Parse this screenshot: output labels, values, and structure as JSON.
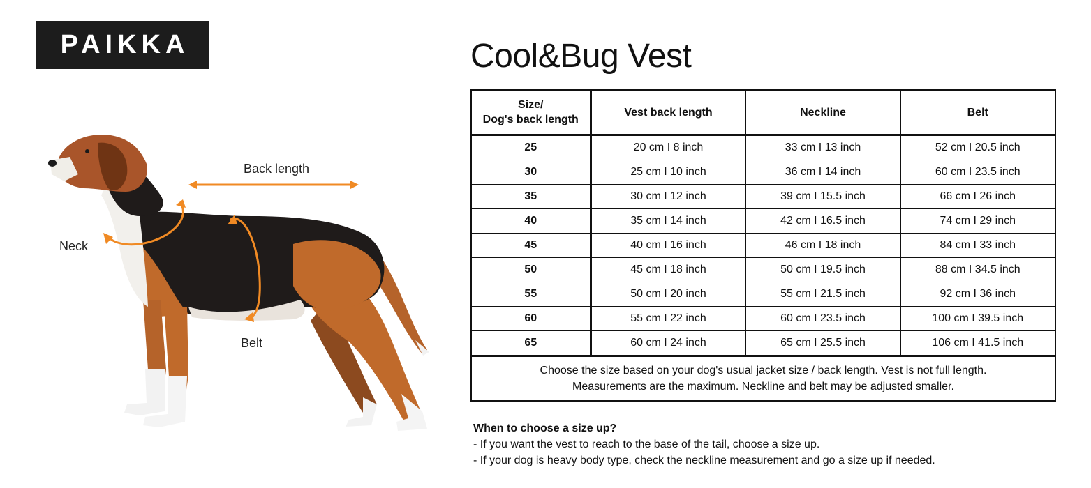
{
  "brand": {
    "logo_text": "PAIKKA"
  },
  "product": {
    "title": "Cool&Bug Vest"
  },
  "illustration": {
    "labels": {
      "back_length": "Back length",
      "neck": "Neck",
      "belt": "Belt"
    },
    "accent_color": "#f08a24"
  },
  "size_table": {
    "headers": {
      "size_line1": "Size/",
      "size_line2": "Dog's back length",
      "vest_back_length": "Vest back length",
      "neckline": "Neckline",
      "belt": "Belt"
    },
    "rows": [
      {
        "size": "25",
        "vest": "20 cm I 8 inch",
        "neck": "33 cm I 13 inch",
        "belt": "52 cm I 20.5 inch"
      },
      {
        "size": "30",
        "vest": "25 cm I 10 inch",
        "neck": "36 cm I 14 inch",
        "belt": "60 cm I 23.5 inch"
      },
      {
        "size": "35",
        "vest": "30 cm I 12 inch",
        "neck": "39 cm I 15.5 inch",
        "belt": "66 cm I 26 inch"
      },
      {
        "size": "40",
        "vest": "35 cm I 14 inch",
        "neck": "42 cm I 16.5 inch",
        "belt": "74 cm I 29 inch"
      },
      {
        "size": "45",
        "vest": "40 cm I 16 inch",
        "neck": "46 cm I 18 inch",
        "belt": "84 cm I 33 inch"
      },
      {
        "size": "50",
        "vest": "45 cm I 18 inch",
        "neck": "50 cm I 19.5 inch",
        "belt": "88 cm I 34.5 inch"
      },
      {
        "size": "55",
        "vest": "50 cm I 20 inch",
        "neck": "55 cm I 21.5 inch",
        "belt": "92 cm I 36 inch"
      },
      {
        "size": "60",
        "vest": "55 cm I 22 inch",
        "neck": "60 cm I 23.5 inch",
        "belt": "100 cm I 39.5 inch"
      },
      {
        "size": "65",
        "vest": "60 cm I 24 inch",
        "neck": "65 cm I 25.5 inch",
        "belt": "106 cm I 41.5 inch"
      }
    ],
    "footnote_line1": "Choose the size based on your dog's usual jacket size / back length. Vest is not full length.",
    "footnote_line2": "Measurements are the maximum. Neckline and belt may be adjusted smaller."
  },
  "tips": {
    "title": "When to choose a size up?",
    "items": [
      "- If you want the vest to reach to the base of the tail, choose a size up.",
      "- If your dog is heavy body type, check the neckline measurement and go a size up if needed."
    ]
  }
}
